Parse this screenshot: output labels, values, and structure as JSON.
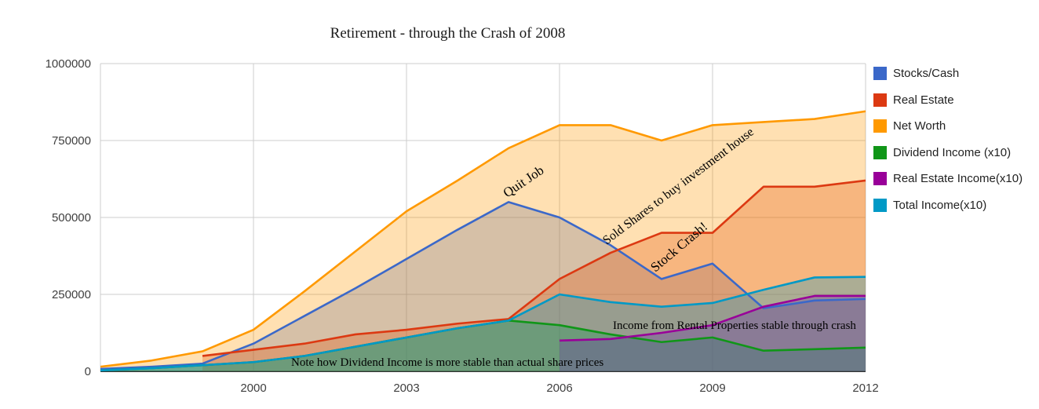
{
  "title": "Retirement - through the Crash of 2008",
  "legend": {
    "items": [
      {
        "label": "Stocks/Cash",
        "color": "#3B68C9"
      },
      {
        "label": "Real Estate",
        "color": "#DC3912"
      },
      {
        "label": "Net Worth",
        "color": "#FF9900"
      },
      {
        "label": "Dividend Income (x10)",
        "color": "#109618"
      },
      {
        "label": "Real Estate Income(x10)",
        "color": "#990099"
      },
      {
        "label": "Total Income(x10)",
        "color": "#0099C6"
      }
    ]
  },
  "chart_data": {
    "type": "area",
    "title": "Retirement - through the Crash of 2008",
    "x": [
      1997,
      1998,
      1999,
      2000,
      2001,
      2002,
      2003,
      2004,
      2005,
      2006,
      2007,
      2008,
      2009,
      2010,
      2011,
      2012
    ],
    "series": [
      {
        "name": "Stocks/Cash",
        "color": "#3B68C9",
        "values": [
          8000,
          15000,
          25000,
          90000,
          180000,
          270000,
          365000,
          460000,
          550000,
          500000,
          410000,
          300000,
          350000,
          205000,
          230000,
          235000
        ]
      },
      {
        "name": "Real Estate",
        "color": "#DC3912",
        "values": [
          null,
          null,
          50000,
          70000,
          90000,
          120000,
          135000,
          155000,
          170000,
          300000,
          385000,
          450000,
          450000,
          600000,
          600000,
          620000
        ]
      },
      {
        "name": "Net Worth",
        "color": "#FF9900",
        "values": [
          15000,
          35000,
          65000,
          135000,
          260000,
          390000,
          520000,
          620000,
          725000,
          800000,
          800000,
          750000,
          800000,
          810000,
          820000,
          845000
        ]
      },
      {
        "name": "Dividend Income (x10)",
        "color": "#109618",
        "values": [
          3000,
          10000,
          20000,
          30000,
          50000,
          80000,
          110000,
          140000,
          165000,
          150000,
          120000,
          95000,
          110000,
          67000,
          72000,
          77000
        ]
      },
      {
        "name": "Real Estate Income(x10)",
        "color": "#990099",
        "values": [
          null,
          null,
          null,
          null,
          null,
          null,
          null,
          null,
          null,
          100000,
          105000,
          125000,
          150000,
          210000,
          245000,
          245000
        ]
      },
      {
        "name": "Total Income(x10)",
        "color": "#0099C6",
        "values": [
          3000,
          10000,
          20000,
          30000,
          50000,
          80000,
          110000,
          140000,
          165000,
          250000,
          225000,
          210000,
          222000,
          265000,
          305000,
          307000
        ]
      }
    ],
    "xlim": [
      1997,
      2012
    ],
    "ylim": [
      0,
      1000000
    ],
    "x_ticks": [
      2000,
      2003,
      2006,
      2009,
      2012
    ],
    "y_ticks": [
      0,
      250000,
      500000,
      750000,
      1000000
    ],
    "grid": true,
    "area_opacity": 0.3,
    "legend_position": "right",
    "annotations": [
      {
        "text": "Quit Job",
        "x": 646,
        "y": 252,
        "rotate": -34,
        "size": 17
      },
      {
        "text": "Sold Shares to buy investment house",
        "x": 773,
        "y": 312,
        "rotate": -37,
        "size": 16
      },
      {
        "text": "Stock Crash!",
        "x": 835,
        "y": 347,
        "rotate": -40,
        "size": 17
      },
      {
        "text": "Income from Rental Properties stable through crash",
        "x": 781,
        "y": 419,
        "rotate": 0,
        "size": 15
      },
      {
        "text": "Note how Dividend Income is more stable than actual share prices",
        "x": 371,
        "y": 466,
        "rotate": 0,
        "size": 15
      }
    ],
    "axis_text_color": "#404040",
    "grid_color": "#cccccc",
    "baseline_color": "#333333"
  }
}
